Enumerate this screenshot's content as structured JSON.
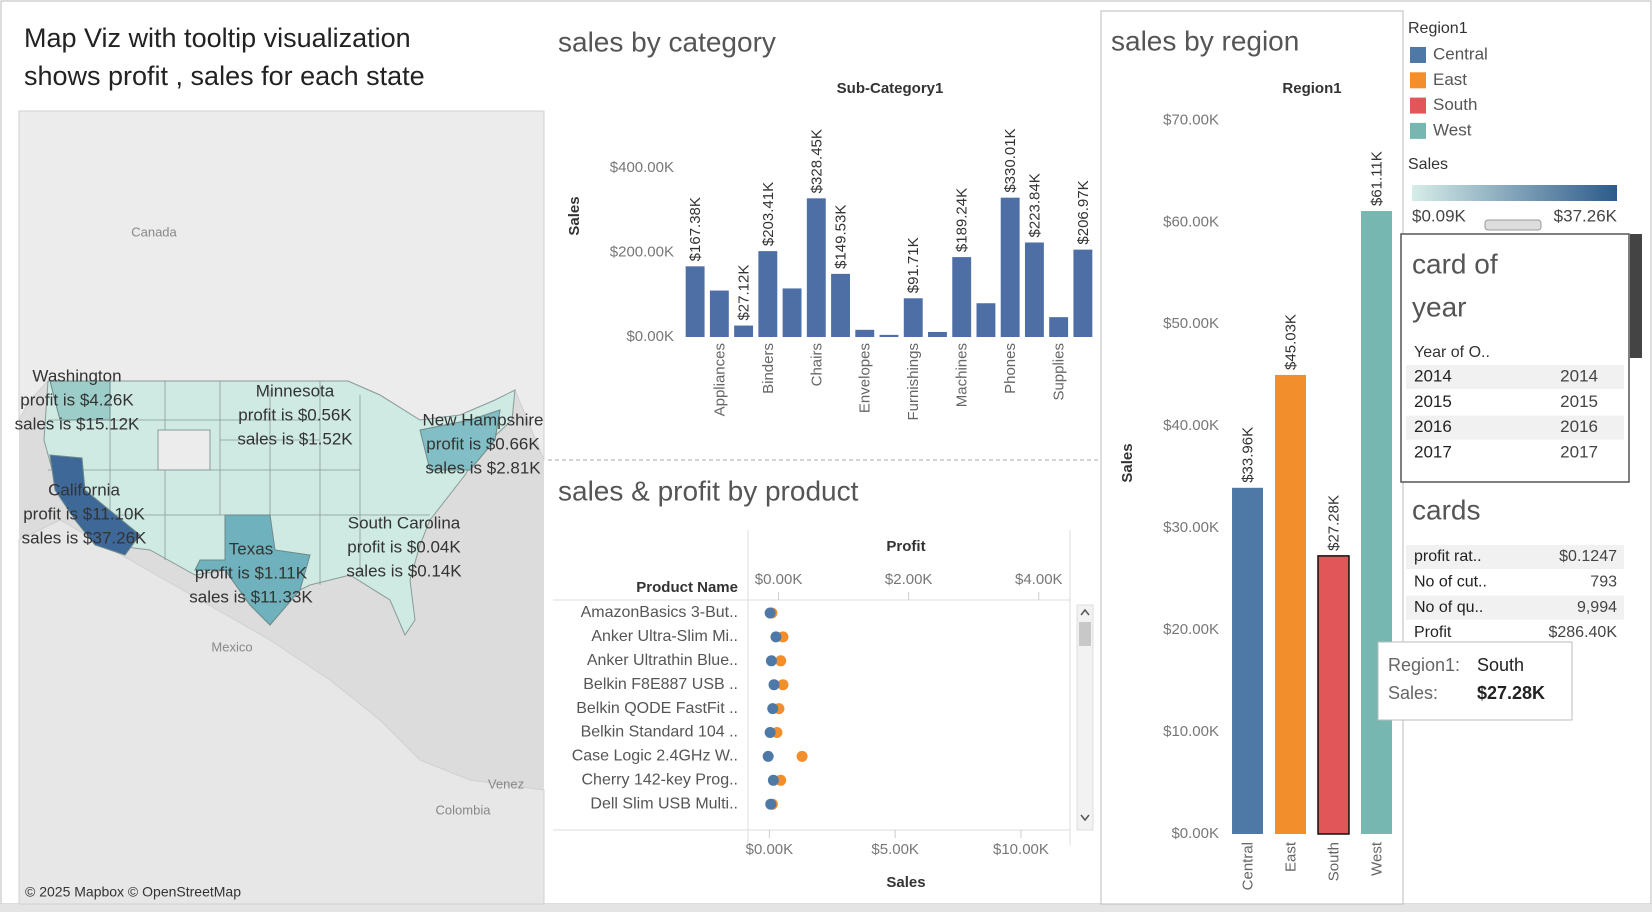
{
  "map": {
    "title": [
      "Map Viz with tooltip visualization",
      "shows profit , sales for each state"
    ],
    "states": [
      {
        "name": "Washington",
        "profit": "profit is $4.26K",
        "sales": "sales is $15.12K"
      },
      {
        "name": "Minnesota",
        "profit": "profit is $0.56K",
        "sales": "sales is $1.52K"
      },
      {
        "name": "New Hampshire",
        "profit": "profit is $0.66K",
        "sales": "sales is $2.81K"
      },
      {
        "name": "California",
        "profit": "profit is $11.10K",
        "sales": "sales is $37.26K"
      },
      {
        "name": "Texas",
        "profit": "profit is $1.11K",
        "sales": "sales is $11.33K"
      },
      {
        "name": "South Carolina",
        "profit": "profit is $0.04K",
        "sales": "sales is $0.14K"
      }
    ],
    "places": [
      "Canada",
      "Mexico",
      "Colombia",
      "Venez"
    ],
    "attribution": "© 2025 Mapbox © OpenStreetMap"
  },
  "chart_data": [
    {
      "type": "bar",
      "title": "sales by category",
      "x_title": "Sub-Category1",
      "y_label": "Sales",
      "categories": [
        null,
        "Appliances",
        null,
        "Binders",
        null,
        "Chairs",
        null,
        "Envelopes",
        null,
        "Furnishings",
        null,
        "Machines",
        null,
        "Phones",
        null,
        "Supplies",
        null
      ],
      "values": [
        167380,
        110000,
        27120,
        203410,
        115000,
        328450,
        149530,
        17000,
        5000,
        91710,
        12000,
        189240,
        80000,
        330010,
        223840,
        47000,
        206970
      ],
      "value_labels": [
        "$167.38K",
        null,
        "$27.12K",
        "$203.41K",
        null,
        "$328.45K",
        "$149.53K",
        null,
        null,
        "$91.71K",
        null,
        "$189.24K",
        null,
        "$330.01K",
        "$223.84K",
        null,
        "$206.97K"
      ],
      "color": "#4e6fa6",
      "ylim": [
        0,
        450000
      ],
      "yticks": [
        {
          "value": 0,
          "label": "$0.00K"
        },
        {
          "value": 200000,
          "label": "$200.00K"
        },
        {
          "value": 400000,
          "label": "$400.00K"
        }
      ]
    },
    {
      "type": "bar",
      "title": "sales by region",
      "x_title": "Region1",
      "y_label": "Sales",
      "categories": [
        "Central",
        "East",
        "South",
        "West"
      ],
      "values": [
        33960,
        45030,
        27280,
        61110
      ],
      "value_labels": [
        "$33.96K",
        "$45.03K",
        "$27.28K",
        "$61.11K"
      ],
      "colors": [
        "#4e79a7",
        "#f28e2b",
        "#e15759",
        "#76b7b2"
      ],
      "highlighted": [
        false,
        false,
        true,
        false
      ],
      "ylim": [
        0,
        72000
      ],
      "yticks": [
        {
          "value": 0,
          "label": "$0.00K"
        },
        {
          "value": 10000,
          "label": "$10.00K"
        },
        {
          "value": 20000,
          "label": "$20.00K"
        },
        {
          "value": 30000,
          "label": "$30.00K"
        },
        {
          "value": 40000,
          "label": "$40.00K"
        },
        {
          "value": 50000,
          "label": "$50.00K"
        },
        {
          "value": 60000,
          "label": "$60.00K"
        },
        {
          "value": 70000,
          "label": "$70.00K"
        }
      ]
    },
    {
      "type": "dot",
      "title": "sales & profit by product",
      "y_title": "Product Name",
      "categories": [
        "AmazonBasics 3-But..",
        "Anker Ultra-Slim Mi..",
        "Anker Ultrathin Blue..",
        "Belkin F8E887 USB ..",
        "Belkin QODE FastFit ..",
        "Belkin Standard 104 ..",
        "Case Logic 2.4GHz W..",
        "Cherry 142-key Prog..",
        "Dell Slim USB Multi.."
      ],
      "series": [
        {
          "name": "Sales",
          "color": "#f28e2b",
          "axis": "x2",
          "values": [
            100,
            540,
            450,
            540,
            380,
            300,
            1300,
            450,
            120
          ]
        },
        {
          "name": "Profit",
          "color": "#4e79a7",
          "values": [
            -130,
            -40,
            -110,
            -70,
            -90,
            -130,
            -160,
            -80,
            -120
          ]
        }
      ],
      "xlim": [
        -470,
        4480
      ],
      "xticks": [
        {
          "value": 0,
          "label": "$0.00K"
        },
        {
          "value": 2000,
          "label": "$2.00K"
        },
        {
          "value": 4000,
          "label": "$4.00K"
        }
      ],
      "x2lim": [
        -850,
        11950
      ],
      "x2ticks": [
        {
          "value": 0,
          "label": "$0.00K"
        },
        {
          "value": 5000,
          "label": "$5.00K"
        },
        {
          "value": 10000,
          "label": "$10.00K"
        }
      ]
    }
  ],
  "legend": {
    "title": "Region1"
  },
  "color_legend": {
    "title": "Sales",
    "min_label": "$0.09K",
    "max_label": "$37.26K",
    "colors": [
      "#d6ede8",
      "#2d5a8a"
    ]
  },
  "year_card": {
    "title": [
      "card of",
      "year"
    ],
    "header": "Year of O..",
    "rows": [
      [
        "2014",
        "2014"
      ],
      [
        "2015",
        "2015"
      ],
      [
        "2016",
        "2016"
      ],
      [
        "2017",
        "2017"
      ]
    ]
  },
  "cards": {
    "title": "cards",
    "rows": [
      [
        "profit rat..",
        "$0.1247"
      ],
      [
        "No of cut..",
        "793"
      ],
      [
        "No of qu..",
        "9,994"
      ],
      [
        "Profit",
        "$286.40K"
      ]
    ]
  },
  "tooltip": {
    "rows": [
      [
        "Region1:",
        "South"
      ],
      [
        "Sales:",
        "$27.28K"
      ]
    ]
  }
}
